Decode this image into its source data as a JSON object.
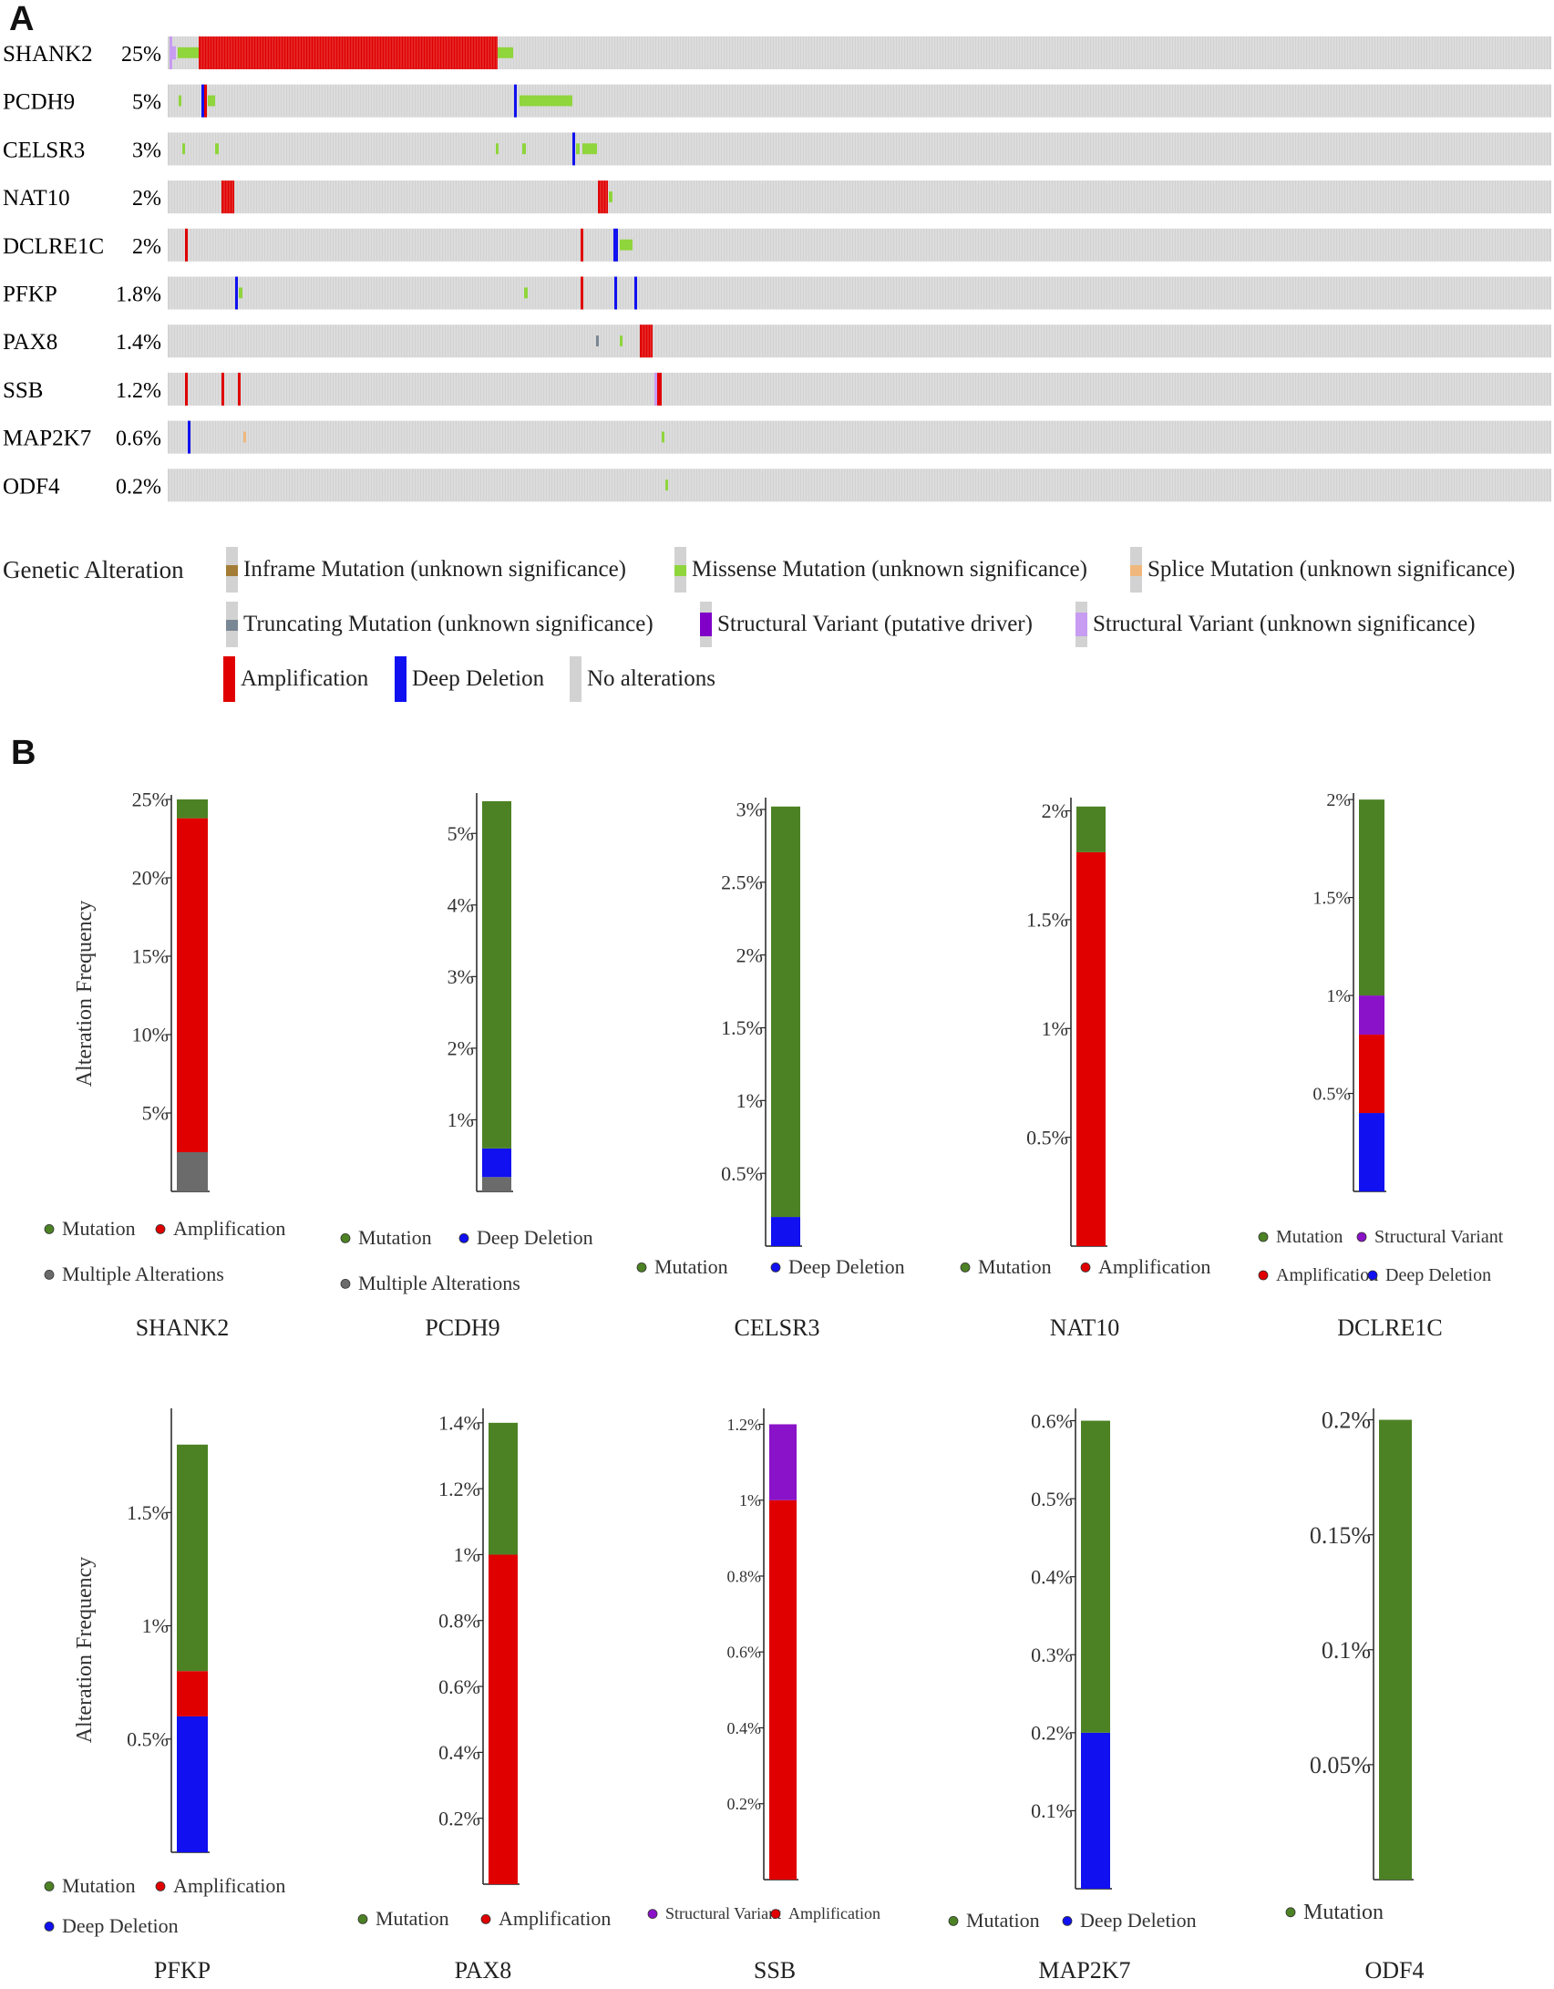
{
  "panels": {
    "a_label": "A",
    "b_label": "B"
  },
  "colors": {
    "amplification": "#e00000",
    "deep_deletion": "#1010f0",
    "missense": "#8fd53c",
    "inframe": "#a37d35",
    "splice": "#f0b87c",
    "truncating": "#7a8794",
    "sv_driver": "#8000c8",
    "sv_unknown": "#c79cf2",
    "no_alteration": "#d2d2d2",
    "mutation": "#4c8224",
    "multiple": "#6b6b6b",
    "structural_variant": "#8a12c8"
  },
  "oncoprint": {
    "genes": [
      {
        "name": "SHANK2",
        "pct": "25%"
      },
      {
        "name": "PCDH9",
        "pct": "5%"
      },
      {
        "name": "CELSR3",
        "pct": "3%"
      },
      {
        "name": "NAT10",
        "pct": "2%"
      },
      {
        "name": "DCLRE1C",
        "pct": "2%"
      },
      {
        "name": "PFKP",
        "pct": "1.8%"
      },
      {
        "name": "PAX8",
        "pct": "1.4%"
      },
      {
        "name": "SSB",
        "pct": "1.2%"
      },
      {
        "name": "MAP2K7",
        "pct": "0.6%"
      },
      {
        "name": "ODF4",
        "pct": "0.2%"
      }
    ]
  },
  "legend": {
    "title": "Genetic Alteration",
    "items": [
      {
        "key": "inframe",
        "label": "Inframe Mutation (unknown significance)"
      },
      {
        "key": "missense",
        "label": "Missense Mutation (unknown significance)"
      },
      {
        "key": "splice",
        "label": "Splice Mutation (unknown significance)"
      },
      {
        "key": "truncating",
        "label": "Truncating Mutation (unknown significance)"
      },
      {
        "key": "sv_driver",
        "label": "Structural Variant (putative driver)"
      },
      {
        "key": "sv_unknown",
        "label": "Structural Variant (unknown significance)"
      },
      {
        "key": "amplification",
        "label": "Amplification"
      },
      {
        "key": "deep_deletion",
        "label": "Deep Deletion"
      },
      {
        "key": "no_alteration",
        "label": "No alterations"
      }
    ]
  },
  "chart_data": [
    {
      "type": "bar",
      "title": "SHANK2",
      "ylabel": "Alteration Frequency",
      "ylim": [
        0,
        25
      ],
      "ticks": [
        5,
        10,
        15,
        20,
        25
      ],
      "tick_labels": [
        "5%",
        "10%",
        "15%",
        "20%",
        "25%"
      ],
      "series": [
        {
          "name": "Multiple Alterations",
          "value": 2.5,
          "color": "multiple"
        },
        {
          "name": "Amplification",
          "value": 21.3,
          "color": "amplification"
        },
        {
          "name": "Mutation",
          "value": 1.2,
          "color": "mutation"
        }
      ],
      "legend": [
        [
          "Mutation",
          "Amplification"
        ],
        [
          "Multiple Alterations"
        ]
      ]
    },
    {
      "type": "bar",
      "title": "PCDH9",
      "ylabel": "",
      "ylim": [
        0,
        5.5
      ],
      "ticks": [
        1,
        2,
        3,
        4,
        5
      ],
      "tick_labels": [
        "1%",
        "2%",
        "3%",
        "4%",
        "5%"
      ],
      "series": [
        {
          "name": "Multiple Alterations",
          "value": 0.2,
          "color": "multiple"
        },
        {
          "name": "Deep Deletion",
          "value": 0.4,
          "color": "deep_deletion"
        },
        {
          "name": "Mutation",
          "value": 4.85,
          "color": "mutation"
        }
      ],
      "legend": [
        [
          "Mutation",
          "Deep Deletion"
        ],
        [
          "Multiple Alterations"
        ]
      ]
    },
    {
      "type": "bar",
      "title": "CELSR3",
      "ylabel": "",
      "ylim": [
        0,
        3.05
      ],
      "ticks": [
        0.5,
        1,
        1.5,
        2,
        2.5,
        3
      ],
      "tick_labels": [
        "0.5%",
        "1%",
        "1.5%",
        "2%",
        "2.5%",
        "3%"
      ],
      "series": [
        {
          "name": "Deep Deletion",
          "value": 0.2,
          "color": "deep_deletion"
        },
        {
          "name": "Mutation",
          "value": 2.82,
          "color": "mutation"
        }
      ],
      "legend": [
        [
          "Mutation",
          "Deep Deletion"
        ]
      ]
    },
    {
      "type": "bar",
      "title": "NAT10",
      "ylabel": "",
      "ylim": [
        0,
        2.04
      ],
      "ticks": [
        0.5,
        1,
        1.5,
        2
      ],
      "tick_labels": [
        "0.5%",
        "1%",
        "1.5%",
        "2%"
      ],
      "series": [
        {
          "name": "Amplification",
          "value": 1.81,
          "color": "amplification"
        },
        {
          "name": "Mutation",
          "value": 0.21,
          "color": "mutation"
        }
      ],
      "legend": [
        [
          "Mutation",
          "Amplification"
        ]
      ]
    },
    {
      "type": "bar",
      "title": "DCLRE1C",
      "ylabel": "",
      "ylim": [
        0,
        2.01
      ],
      "ticks": [
        0.5,
        1,
        1.5,
        2
      ],
      "tick_labels": [
        "0.5%",
        "1%",
        "1.5%",
        "2%"
      ],
      "series": [
        {
          "name": "Deep Deletion",
          "value": 0.4,
          "color": "deep_deletion"
        },
        {
          "name": "Amplification",
          "value": 0.4,
          "color": "amplification"
        },
        {
          "name": "Structural Variant",
          "value": 0.2,
          "color": "structural_variant"
        },
        {
          "name": "Mutation",
          "value": 1.0,
          "color": "mutation"
        }
      ],
      "legend": [
        [
          "Mutation",
          "Structural Variant"
        ],
        [
          "Amplification",
          "Deep Deletion"
        ]
      ]
    },
    {
      "type": "bar",
      "title": "PFKP",
      "ylabel": "Alteration Frequency",
      "ylim": [
        0,
        1.94
      ],
      "ticks": [
        0.5,
        1,
        1.5
      ],
      "tick_labels": [
        "0.5%",
        "1%",
        "1.5%"
      ],
      "series": [
        {
          "name": "Deep Deletion",
          "value": 0.6,
          "color": "deep_deletion"
        },
        {
          "name": "Amplification",
          "value": 0.2,
          "color": "amplification"
        },
        {
          "name": "Mutation",
          "value": 1.0,
          "color": "mutation"
        }
      ],
      "legend": [
        [
          "Mutation",
          "Amplification"
        ],
        [
          "Deep Deletion"
        ]
      ]
    },
    {
      "type": "bar",
      "title": "PAX8",
      "ylabel": "",
      "ylim": [
        0,
        1.43
      ],
      "ticks": [
        0.2,
        0.4,
        0.6,
        0.8,
        1,
        1.2,
        1.4
      ],
      "tick_labels": [
        "0.2%",
        "0.4%",
        "0.6%",
        "0.8%",
        "1%",
        "1.2%",
        "1.4%"
      ],
      "series": [
        {
          "name": "Amplification",
          "value": 1.0,
          "color": "amplification"
        },
        {
          "name": "Mutation",
          "value": 0.4,
          "color": "mutation"
        }
      ],
      "legend": [
        [
          "Mutation",
          "Amplification"
        ]
      ]
    },
    {
      "type": "bar",
      "title": "SSB",
      "ylabel": "",
      "ylim": [
        0,
        1.23
      ],
      "ticks": [
        0.2,
        0.4,
        0.6,
        0.8,
        1,
        1.2
      ],
      "tick_labels": [
        "0.2%",
        "0.4%",
        "0.6%",
        "0.8%",
        "1%",
        "1.2%"
      ],
      "series": [
        {
          "name": "Amplification",
          "value": 1.0,
          "color": "amplification"
        },
        {
          "name": "Structural Variant",
          "value": 0.2,
          "color": "structural_variant"
        }
      ],
      "legend": [
        [
          "Structural Variant",
          "Amplification"
        ]
      ]
    },
    {
      "type": "bar",
      "title": "MAP2K7",
      "ylabel": "",
      "ylim": [
        0,
        0.61
      ],
      "ticks": [
        0.1,
        0.2,
        0.3,
        0.4,
        0.5,
        0.6
      ],
      "tick_labels": [
        "0.1%",
        "0.2%",
        "0.3%",
        "0.4%",
        "0.5%",
        "0.6%"
      ],
      "series": [
        {
          "name": "Deep Deletion",
          "value": 0.2,
          "color": "deep_deletion"
        },
        {
          "name": "Mutation",
          "value": 0.4,
          "color": "mutation"
        }
      ],
      "legend": [
        [
          "Mutation",
          "Deep Deletion"
        ]
      ]
    },
    {
      "type": "bar",
      "title": "ODF4",
      "ylabel": "",
      "ylim": [
        0,
        0.203
      ],
      "ticks": [
        0.05,
        0.1,
        0.15,
        0.2
      ],
      "tick_labels": [
        "0.05%",
        "0.1%",
        "0.15%",
        "0.2%"
      ],
      "series": [
        {
          "name": "Mutation",
          "value": 0.2,
          "color": "mutation"
        }
      ],
      "legend": [
        [
          "Mutation"
        ]
      ]
    }
  ]
}
